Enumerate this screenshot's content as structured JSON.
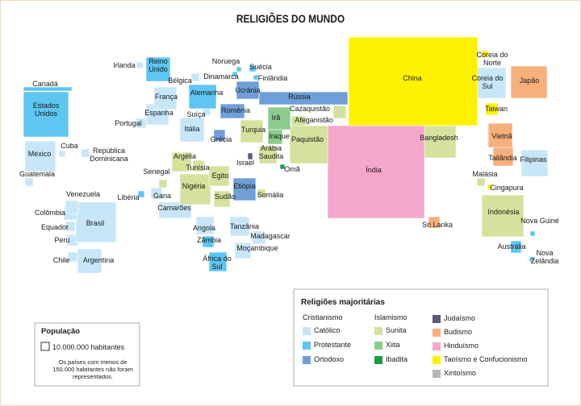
{
  "title": "RELIGIÕES DO MUNDO",
  "countries": [
    "Canadá",
    "Estados Unidos",
    "México",
    "Cuba",
    "República Dominicana",
    "Guatemala",
    "Venezuela",
    "Colômbia",
    "Equador",
    "Brasil",
    "Peru",
    "Chile",
    "Argentina",
    "Irlanda",
    "Reino Unido",
    "Noruega",
    "Suécia",
    "Finlândia",
    "Bélgica",
    "Dinamarca",
    "Alemanha",
    "França",
    "Ucrânia",
    "Rússia",
    "Espanha",
    "Suíça",
    "Romênia",
    "Portugal",
    "Itália",
    "Grécia",
    "Turquia",
    "Irã",
    "Cazaquistão",
    "Afeganistão",
    "Iraque",
    "Arábia Saudita",
    "Paquistão",
    "Israel",
    "Omã",
    "Argélia",
    "Senegal",
    "Tunísia",
    "Egito",
    "Nigéria",
    "Etiópia",
    "Libéria",
    "Gana",
    "Sudão",
    "Somália",
    "Camarões",
    "Angola",
    "Tanzânia",
    "Madagascar",
    "Zâmbia",
    "Moçambique",
    "África do Sul",
    "China",
    "Coreia do Norte",
    "Coreia do Sul",
    "Japão",
    "Taiwan",
    "Índia",
    "Bangladesh",
    "Vietnã",
    "Tailândia",
    "Filipinas",
    "Malásia",
    "Cingapura",
    "Sri Lanka",
    "Indonésia",
    "Nova Guiné",
    "Austrália",
    "Nova Zelândia"
  ],
  "legend": {
    "title": "Religiões majoritárias",
    "groups": [
      {
        "name": "Cristianismo",
        "items": [
          {
            "label": "Católico",
            "color": "#c7e7f8"
          },
          {
            "label": "Protestante",
            "color": "#5ec6f1"
          },
          {
            "label": "Ortodoxo",
            "color": "#6f9fd8"
          }
        ]
      },
      {
        "name": "Islamismo",
        "items": [
          {
            "label": "Sunita",
            "color": "#d5e29d"
          },
          {
            "label": "Xiita",
            "color": "#8ccb8c"
          },
          {
            "label": "Ibadita",
            "color": "#1b9a4b"
          }
        ]
      },
      {
        "items": [
          {
            "label": "Judaísmo",
            "color": "#5b5b77"
          },
          {
            "label": "Budismo",
            "color": "#f7b07c"
          },
          {
            "label": "Hinduísmo",
            "color": "#f3a8c9"
          },
          {
            "label": "Taoísmo e Confucionismo",
            "color": "#fff200"
          },
          {
            "label": "Xintoísmo",
            "color": "#b7b7b7"
          }
        ]
      }
    ]
  },
  "population": {
    "title": "População",
    "scale": "10.000.000 habitantes",
    "note": "Os países com menos de 150.000 habitantes não foram representados."
  }
}
